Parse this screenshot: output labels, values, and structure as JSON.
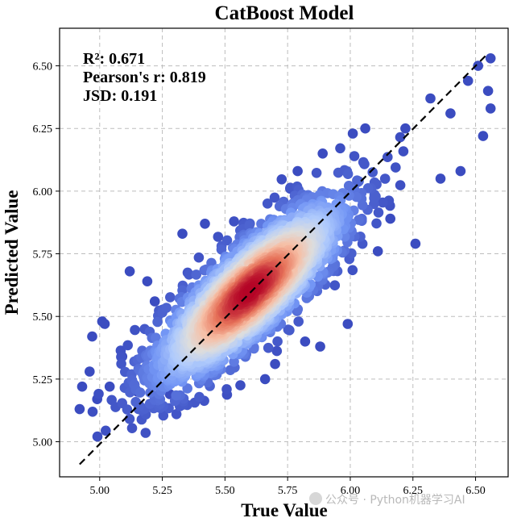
{
  "chart_data": {
    "type": "scatter",
    "title": "CatBoost Model",
    "xlabel": "True Value",
    "ylabel": "Predicted Value",
    "xlim": [
      4.84,
      6.63
    ],
    "ylim": [
      4.86,
      6.65
    ],
    "xticks": [
      5.0,
      5.25,
      5.5,
      5.75,
      6.0,
      6.25,
      6.5
    ],
    "yticks": [
      5.0,
      5.25,
      5.5,
      5.75,
      6.0,
      6.25,
      6.5
    ],
    "tick_labels_x": [
      "5.00",
      "5.25",
      "5.50",
      "5.75",
      "6.00",
      "6.25",
      "6.50"
    ],
    "tick_labels_y": [
      "5.00",
      "5.25",
      "5.50",
      "5.75",
      "6.00",
      "6.25",
      "6.50"
    ],
    "grid": true,
    "reference_line": {
      "style": "dashed",
      "color": "#000000",
      "from": [
        4.92,
        4.91
      ],
      "to": [
        6.55,
        6.55
      ]
    },
    "colormap": [
      "#3b4cc0",
      "#7396f5",
      "#b0cbfc",
      "#dddddd",
      "#f6bfa6",
      "#e7745b",
      "#b40426"
    ],
    "density_center": [
      5.6,
      5.6
    ],
    "statistics": [
      {
        "label": "R²: 0.671"
      },
      {
        "label": "Pearson's r: 0.819"
      },
      {
        "label": "JSD: 0.191"
      }
    ],
    "outlier_points": [
      [
        4.92,
        5.13
      ],
      [
        4.93,
        5.22
      ],
      [
        4.96,
        5.28
      ],
      [
        4.97,
        5.42
      ],
      [
        4.99,
        5.17
      ],
      [
        5.01,
        5.48
      ],
      [
        5.02,
        5.47
      ],
      [
        5.04,
        5.22
      ],
      [
        5.09,
        5.34
      ],
      [
        5.12,
        5.68
      ],
      [
        5.15,
        5.2
      ],
      [
        5.19,
        5.64
      ],
      [
        5.22,
        5.56
      ],
      [
        5.28,
        5.19
      ],
      [
        5.33,
        5.83
      ],
      [
        5.38,
        5.3
      ],
      [
        5.42,
        5.87
      ],
      [
        5.66,
        5.25
      ],
      [
        5.7,
        5.31
      ],
      [
        5.76,
        6.01
      ],
      [
        5.79,
        6.08
      ],
      [
        5.82,
        5.4
      ],
      [
        5.88,
        5.38
      ],
      [
        5.89,
        6.15
      ],
      [
        5.99,
        5.47
      ],
      [
        6.01,
        6.23
      ],
      [
        6.06,
        6.25
      ],
      [
        6.11,
        5.76
      ],
      [
        6.16,
        5.89
      ],
      [
        6.22,
        6.25
      ],
      [
        6.26,
        5.79
      ],
      [
        6.32,
        6.37
      ],
      [
        6.36,
        6.05
      ],
      [
        6.4,
        6.31
      ],
      [
        6.44,
        6.08
      ],
      [
        6.47,
        6.44
      ],
      [
        6.51,
        6.5
      ],
      [
        6.53,
        6.22
      ],
      [
        6.55,
        6.4
      ],
      [
        6.56,
        6.33
      ],
      [
        6.56,
        6.53
      ]
    ]
  }
}
